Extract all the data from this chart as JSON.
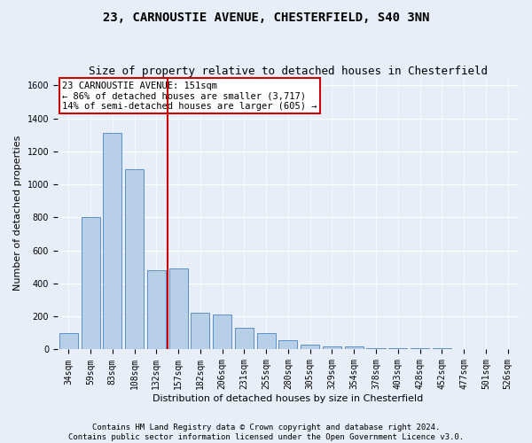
{
  "title": "23, CARNOUSTIE AVENUE, CHESTERFIELD, S40 3NN",
  "subtitle": "Size of property relative to detached houses in Chesterfield",
  "xlabel": "Distribution of detached houses by size in Chesterfield",
  "ylabel": "Number of detached properties",
  "categories": [
    "34sqm",
    "59sqm",
    "83sqm",
    "108sqm",
    "132sqm",
    "157sqm",
    "182sqm",
    "206sqm",
    "231sqm",
    "255sqm",
    "280sqm",
    "305sqm",
    "329sqm",
    "354sqm",
    "378sqm",
    "403sqm",
    "428sqm",
    "452sqm",
    "477sqm",
    "501sqm",
    "526sqm"
  ],
  "values": [
    100,
    800,
    1310,
    1090,
    480,
    490,
    220,
    210,
    130,
    100,
    55,
    30,
    20,
    18,
    10,
    8,
    7,
    6,
    5,
    5,
    5
  ],
  "bar_color": "#b8cfe8",
  "bar_edge_color": "#5b8fc9",
  "ylim": [
    0,
    1650
  ],
  "yticks": [
    0,
    200,
    400,
    600,
    800,
    1000,
    1200,
    1400,
    1600
  ],
  "property_bin_index": 4.5,
  "red_line_color": "#cc0000",
  "annotation_text_line1": "23 CARNOUSTIE AVENUE: 151sqm",
  "annotation_text_line2": "← 86% of detached houses are smaller (3,717)",
  "annotation_text_line3": "14% of semi-detached houses are larger (605) →",
  "footer_line1": "Contains HM Land Registry data © Crown copyright and database right 2024.",
  "footer_line2": "Contains public sector information licensed under the Open Government Licence v3.0.",
  "background_color": "#e8eef7",
  "plot_bg_color": "#e8eef7",
  "grid_color": "#ffffff",
  "title_fontsize": 10,
  "subtitle_fontsize": 9,
  "axis_label_fontsize": 8,
  "tick_fontsize": 7,
  "annotation_fontsize": 7.5,
  "footer_fontsize": 6.5
}
